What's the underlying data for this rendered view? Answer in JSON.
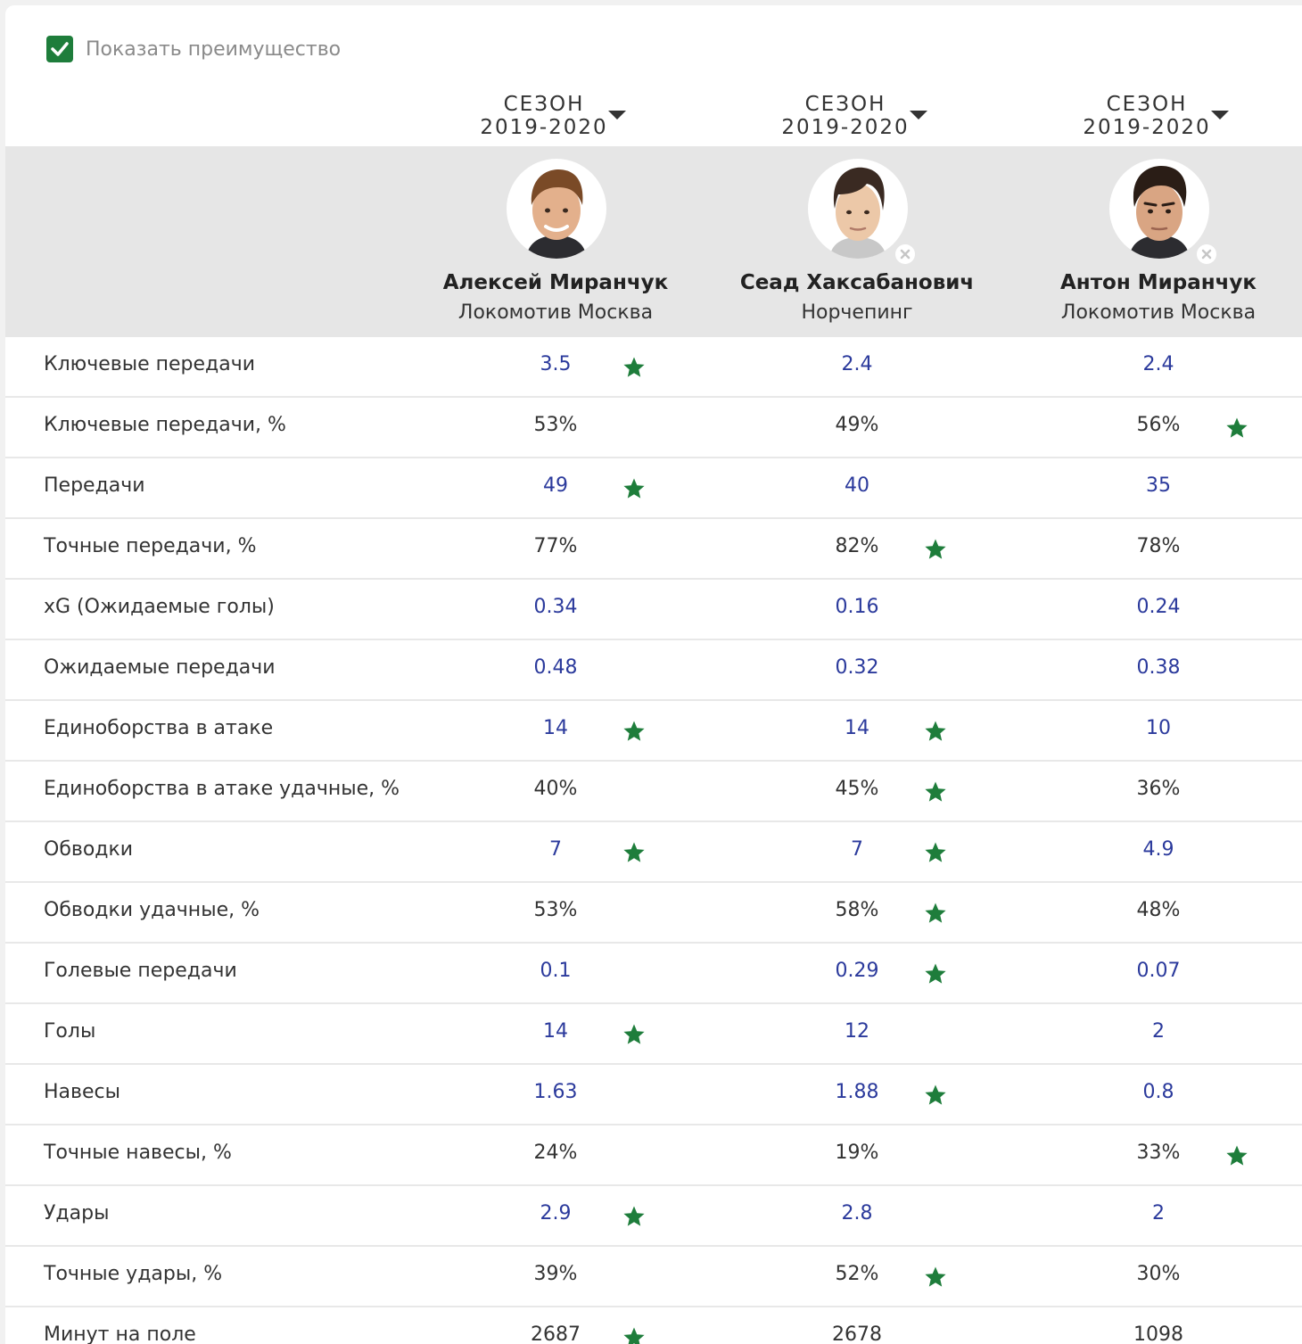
{
  "toggle": {
    "label": "Показать преимущество",
    "checked": true
  },
  "accent_color": "#1e7d3b",
  "link_color": "#2b3a9c",
  "columns": [
    {
      "season_line1": "СЕЗОН",
      "season_line2": "2019-2020",
      "player_name": "Алексей Миранчук",
      "team": "Локомотив Москва",
      "removable": false
    },
    {
      "season_line1": "СЕЗОН",
      "season_line2": "2019-2020",
      "player_name": "Сеад Хаксабанович",
      "team": "Норчепинг",
      "removable": true
    },
    {
      "season_line1": "СЕЗОН",
      "season_line2": "2019-2020",
      "player_name": "Антон Миранчук",
      "team": "Локомотив Москва",
      "removable": true
    }
  ],
  "stats": [
    {
      "label": "Ключевые передачи",
      "link": true,
      "values": [
        "3.5",
        "2.4",
        "2.4"
      ],
      "best": [
        true,
        false,
        false
      ]
    },
    {
      "label": "Ключевые передачи, %",
      "link": false,
      "values": [
        "53%",
        "49%",
        "56%"
      ],
      "best": [
        false,
        false,
        true
      ]
    },
    {
      "label": "Передачи",
      "link": true,
      "values": [
        "49",
        "40",
        "35"
      ],
      "best": [
        true,
        false,
        false
      ]
    },
    {
      "label": "Точные передачи, %",
      "link": false,
      "values": [
        "77%",
        "82%",
        "78%"
      ],
      "best": [
        false,
        true,
        false
      ]
    },
    {
      "label": "xG (Ожидаемые голы)",
      "link": true,
      "values": [
        "0.34",
        "0.16",
        "0.24"
      ],
      "best": [
        false,
        false,
        false
      ]
    },
    {
      "label": "Ожидаемые передачи",
      "link": true,
      "values": [
        "0.48",
        "0.32",
        "0.38"
      ],
      "best": [
        false,
        false,
        false
      ]
    },
    {
      "label": "Единоборства в атаке",
      "link": true,
      "values": [
        "14",
        "14",
        "10"
      ],
      "best": [
        true,
        true,
        false
      ]
    },
    {
      "label": "Единоборства в атаке удачные, %",
      "link": false,
      "values": [
        "40%",
        "45%",
        "36%"
      ],
      "best": [
        false,
        true,
        false
      ]
    },
    {
      "label": "Обводки",
      "link": true,
      "values": [
        "7",
        "7",
        "4.9"
      ],
      "best": [
        true,
        true,
        false
      ]
    },
    {
      "label": "Обводки удачные, %",
      "link": false,
      "values": [
        "53%",
        "58%",
        "48%"
      ],
      "best": [
        false,
        true,
        false
      ]
    },
    {
      "label": "Голевые передачи",
      "link": true,
      "values": [
        "0.1",
        "0.29",
        "0.07"
      ],
      "best": [
        false,
        true,
        false
      ]
    },
    {
      "label": "Голы",
      "link": true,
      "values": [
        "14",
        "12",
        "2"
      ],
      "best": [
        true,
        false,
        false
      ]
    },
    {
      "label": "Навесы",
      "link": true,
      "values": [
        "1.63",
        "1.88",
        "0.8"
      ],
      "best": [
        false,
        true,
        false
      ]
    },
    {
      "label": "Точные навесы, %",
      "link": false,
      "values": [
        "24%",
        "19%",
        "33%"
      ],
      "best": [
        false,
        false,
        true
      ]
    },
    {
      "label": "Удары",
      "link": true,
      "values": [
        "2.9",
        "2.8",
        "2"
      ],
      "best": [
        true,
        false,
        false
      ]
    },
    {
      "label": "Точные удары, %",
      "link": false,
      "values": [
        "39%",
        "52%",
        "30%"
      ],
      "best": [
        false,
        true,
        false
      ]
    },
    {
      "label": "Минут на поле",
      "link": false,
      "values": [
        "2687",
        "2678",
        "1098"
      ],
      "best": [
        true,
        false,
        false
      ]
    }
  ]
}
